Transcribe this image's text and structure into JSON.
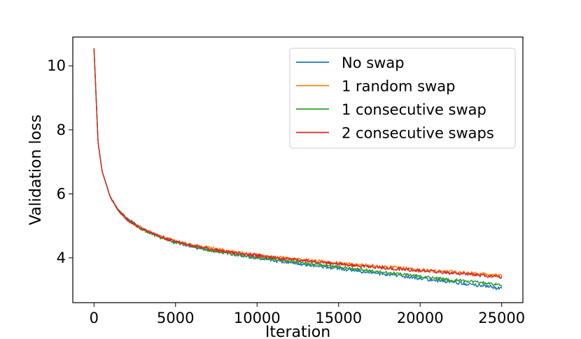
{
  "chart_data": {
    "type": "line",
    "title": "",
    "xlabel": "Iteration",
    "ylabel": "Validation loss",
    "xlim": [
      -1300,
      26300
    ],
    "ylim": [
      2.6,
      10.9
    ],
    "xticks": [
      0,
      5000,
      10000,
      15000,
      20000,
      25000
    ],
    "xtick_labels": [
      "0",
      "5000",
      "10000",
      "15000",
      "20000",
      "25000"
    ],
    "yticks": [
      4,
      6,
      8,
      10
    ],
    "ytick_labels": [
      "4",
      "6",
      "8",
      "10"
    ],
    "grid": false,
    "legend_position": "top-right",
    "x": [
      0,
      250,
      500,
      1000,
      1500,
      2000,
      3000,
      4000,
      5000,
      6000,
      7000,
      8000,
      9000,
      10000,
      11000,
      12000,
      13000,
      14000,
      15000,
      16000,
      17000,
      18000,
      19000,
      20000,
      21000,
      22000,
      23000,
      24000,
      25000
    ],
    "series": [
      {
        "name": "No swap",
        "color": "#1f77b4",
        "noise": 0.05,
        "values": [
          10.55,
          7.6,
          6.7,
          5.9,
          5.48,
          5.22,
          4.88,
          4.65,
          4.48,
          4.35,
          4.25,
          4.15,
          4.07,
          3.99,
          3.92,
          3.86,
          3.79,
          3.73,
          3.66,
          3.6,
          3.54,
          3.48,
          3.42,
          3.36,
          3.3,
          3.24,
          3.17,
          3.11,
          3.05
        ]
      },
      {
        "name": "1 random swap",
        "color": "#ff7f0e",
        "noise": 0.055,
        "values": [
          10.55,
          7.6,
          6.7,
          5.9,
          5.48,
          5.22,
          4.9,
          4.68,
          4.52,
          4.4,
          4.3,
          4.22,
          4.15,
          4.09,
          4.03,
          3.98,
          3.93,
          3.88,
          3.83,
          3.79,
          3.75,
          3.71,
          3.67,
          3.63,
          3.59,
          3.55,
          3.52,
          3.49,
          3.46
        ]
      },
      {
        "name": "1 consecutive swap",
        "color": "#2ca02c",
        "noise": 0.045,
        "values": [
          10.55,
          7.6,
          6.7,
          5.9,
          5.48,
          5.22,
          4.88,
          4.65,
          4.49,
          4.36,
          4.25,
          4.16,
          4.08,
          4.01,
          3.95,
          3.89,
          3.83,
          3.77,
          3.71,
          3.65,
          3.59,
          3.53,
          3.48,
          3.42,
          3.37,
          3.31,
          3.26,
          3.21,
          3.16
        ]
      },
      {
        "name": "2 consecutive swaps",
        "color": "#d62728",
        "noise": 0.05,
        "values": [
          10.55,
          7.6,
          6.7,
          5.9,
          5.48,
          5.22,
          4.89,
          4.67,
          4.51,
          4.39,
          4.29,
          4.2,
          4.13,
          4.07,
          4.01,
          3.96,
          3.91,
          3.86,
          3.81,
          3.76,
          3.72,
          3.68,
          3.64,
          3.6,
          3.56,
          3.52,
          3.48,
          3.44,
          3.4
        ]
      }
    ]
  }
}
